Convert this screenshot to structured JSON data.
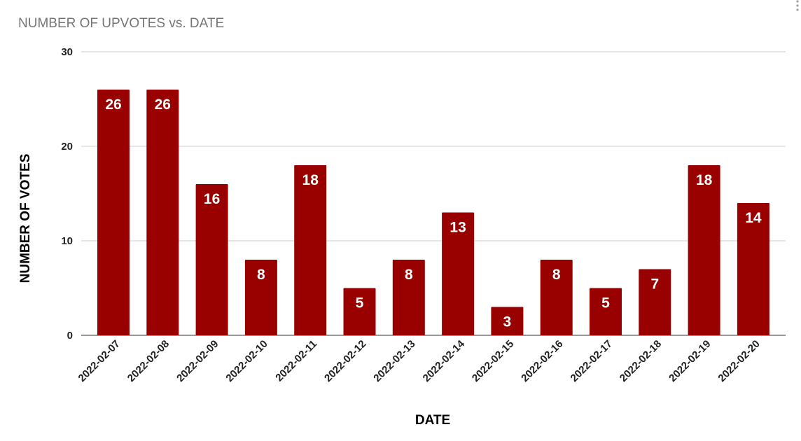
{
  "chart_data": {
    "type": "bar",
    "title": "NUMBER OF UPVOTES vs. DATE",
    "xlabel": "DATE",
    "ylabel": "NUMBER OF VOTES",
    "categories": [
      "2022-02-07",
      "2022-02-08",
      "2022-02-09",
      "2022-02-10",
      "2022-02-11",
      "2022-02-12",
      "2022-02-13",
      "2022-02-14",
      "2022-02-15",
      "2022-02-16",
      "2022-02-17",
      "2022-02-18",
      "2022-02-19",
      "2022-02-20"
    ],
    "values": [
      26,
      26,
      16,
      8,
      18,
      5,
      8,
      13,
      3,
      8,
      5,
      7,
      18,
      14
    ],
    "ylim": [
      0,
      30
    ],
    "yticks": [
      0,
      10,
      20,
      30
    ],
    "grid": true,
    "data_labels": true,
    "legend": "none",
    "bar_color": "#990000"
  },
  "menu": {
    "icon": "more-vert-icon"
  }
}
